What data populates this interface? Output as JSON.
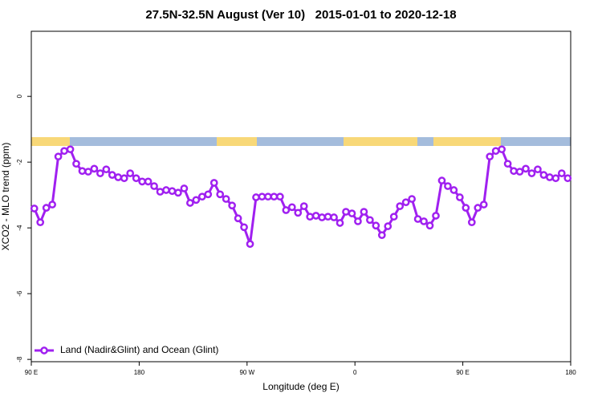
{
  "chart_data": {
    "type": "line",
    "title": "27.5N-32.5N August (Ver 10)   2015-01-01 to 2020-12-18",
    "xlabel": "Longitude (deg E)",
    "ylabel": "XCO2 - MLO trend (ppm)",
    "xlim": [
      90,
      540
    ],
    "xticks": [
      {
        "value": 90,
        "label": "90 E"
      },
      180,
      {
        "value": 270,
        "label": "90 W"
      },
      {
        "value": 360,
        "label": "0"
      },
      {
        "value": 450,
        "label": "90 E"
      },
      {
        "value": 540,
        "label": "180"
      }
    ],
    "ylim": [
      -8.07,
      1.98
    ],
    "yticks": [
      0,
      -2,
      -4,
      -6,
      -8
    ],
    "legend": "bottom-left",
    "x": [
      92.5,
      97.5,
      102.5,
      107.5,
      112.5,
      117.5,
      122.5,
      127.5,
      132.5,
      137.5,
      142.5,
      147.5,
      152.5,
      157.5,
      162.5,
      167.5,
      172.5,
      177.5,
      182.5,
      187.5,
      192.5,
      197.5,
      202.5,
      207.5,
      212.5,
      217.5,
      222.5,
      227.5,
      232.5,
      237.5,
      242.5,
      247.5,
      252.5,
      257.5,
      262.5,
      267.5,
      272.5,
      277.5,
      282.5,
      287.5,
      292.5,
      297.5,
      302.5,
      307.5,
      312.5,
      317.5,
      322.5,
      327.5,
      332.5,
      337.5,
      342.5,
      347.5,
      352.5,
      357.5,
      362.5,
      367.5,
      372.5,
      377.5,
      382.5,
      387.5,
      392.5,
      397.5,
      402.5,
      407.5,
      412.5,
      417.5,
      422.5,
      427.5,
      432.5,
      437.5,
      442.5,
      447.5,
      452.5,
      457.5,
      462.5,
      467.5,
      472.5,
      477.5,
      482.5,
      487.5,
      492.5,
      497.5,
      502.5,
      507.5,
      512.5,
      517.5,
      522.5,
      527.5,
      532.5,
      537.5
    ],
    "series": [
      {
        "name": "Land (Nadir&Glint) and Ocean (Glint)",
        "color": "#a020f0",
        "values": [
          -3.41,
          -3.83,
          -3.39,
          -3.29,
          -1.83,
          -1.66,
          -1.61,
          -2.05,
          -2.27,
          -2.29,
          -2.2,
          -2.34,
          -2.22,
          -2.39,
          -2.46,
          -2.49,
          -2.34,
          -2.49,
          -2.59,
          -2.59,
          -2.73,
          -2.9,
          -2.85,
          -2.88,
          -2.93,
          -2.8,
          -3.24,
          -3.15,
          -3.05,
          -2.98,
          -2.63,
          -2.98,
          -3.12,
          -3.32,
          -3.71,
          -3.98,
          -4.49,
          -3.07,
          -3.05,
          -3.05,
          -3.05,
          -3.05,
          -3.46,
          -3.37,
          -3.54,
          -3.34,
          -3.66,
          -3.63,
          -3.68,
          -3.66,
          -3.68,
          -3.85,
          -3.51,
          -3.56,
          -3.8,
          -3.51,
          -3.76,
          -3.93,
          -4.22,
          -3.95,
          -3.66,
          -3.34,
          -3.22,
          -3.12,
          -3.73,
          -3.8,
          -3.93,
          -3.63,
          -2.56,
          -2.73,
          -2.85,
          -3.07,
          -3.39,
          -3.83,
          -3.39,
          -3.29,
          -1.83,
          -1.66,
          -1.61,
          -2.05,
          -2.27,
          -2.29,
          -2.2,
          -2.34,
          -2.22,
          -2.39,
          -2.46,
          -2.49,
          -2.34,
          -2.49
        ]
      }
    ]
  }
}
